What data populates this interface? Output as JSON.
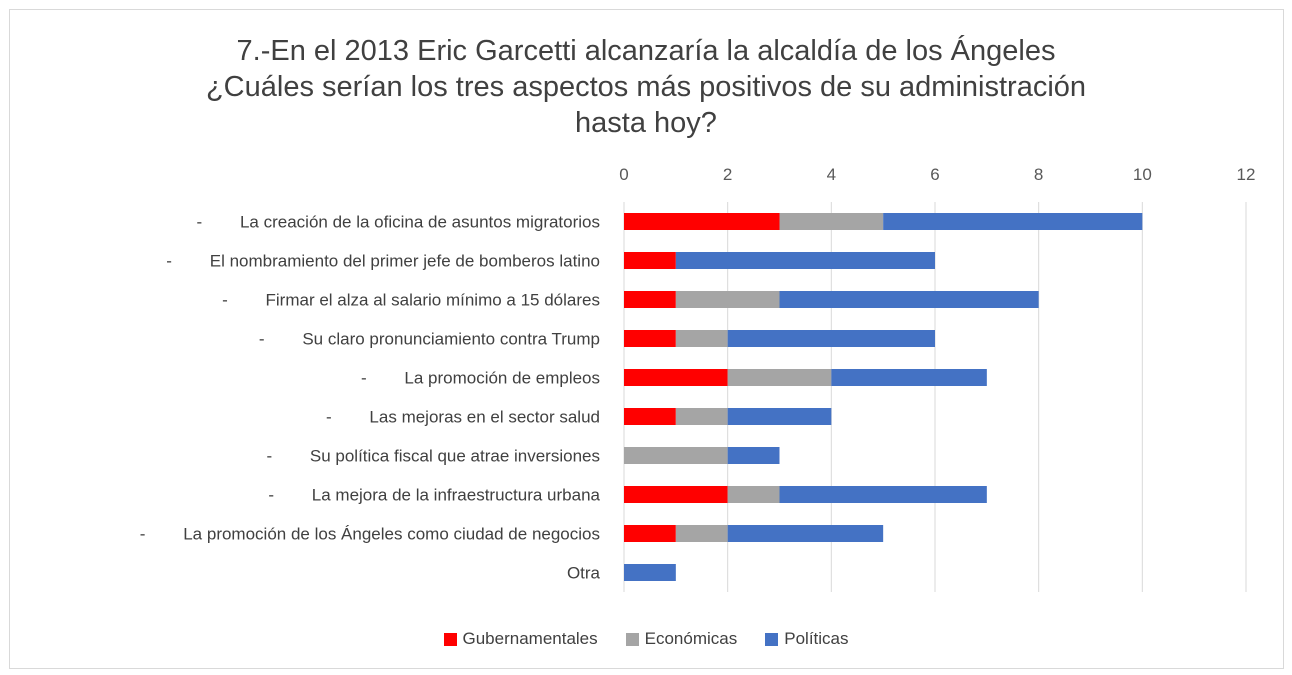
{
  "chart_data": {
    "type": "bar",
    "orientation": "horizontal",
    "stacked": true,
    "title_lines": [
      "7.-En el 2013 Eric Garcetti alcanzaría la alcaldía de los Ángeles",
      "¿Cuáles serían los tres aspectos más positivos de su administración",
      "hasta hoy?"
    ],
    "x_axis_position": "top",
    "xlim": [
      0,
      12
    ],
    "x_ticks": [
      "0",
      "2",
      "4",
      "6",
      "8",
      "10",
      "12"
    ],
    "grid": true,
    "legend_position": "bottom",
    "categories": [
      "-        La creación de la oficina de asuntos migratorios",
      "-        El nombramiento del primer jefe de bomberos latino",
      "-        Firmar el alza al salario mínimo a 15 dólares",
      "-        Su claro pronunciamiento contra Trump",
      "-        La promoción de empleos",
      "-        Las mejoras en el sector salud",
      "-        Su política fiscal que atrae inversiones",
      "-        La mejora de la infraestructura urbana",
      "-        La promoción de los Ángeles como ciudad de negocios",
      "Otra"
    ],
    "series": [
      {
        "name": "Gubernamentales",
        "color": "#ff0000",
        "values": [
          3,
          1,
          1,
          1,
          2,
          1,
          0,
          2,
          1,
          0
        ]
      },
      {
        "name": "Económicas",
        "color": "#a5a5a5",
        "values": [
          2,
          0,
          2,
          1,
          2,
          1,
          2,
          1,
          1,
          0
        ]
      },
      {
        "name": "Políticas",
        "color": "#4472c4",
        "values": [
          5,
          5,
          5,
          4,
          3,
          2,
          1,
          4,
          3,
          1
        ]
      }
    ]
  }
}
